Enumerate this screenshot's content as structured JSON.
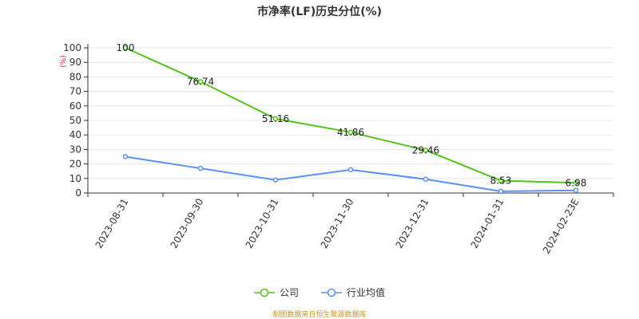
{
  "chart_data": {
    "type": "line",
    "title": "市净率(LF)历史分位(%)",
    "ylabel": "(%)",
    "xlabel": "",
    "ylim": [
      0,
      100
    ],
    "yticks": [
      0,
      10,
      20,
      30,
      40,
      50,
      60,
      70,
      80,
      90,
      100
    ],
    "categories": [
      "2023-08-31",
      "2023-09-30",
      "2023-10-31",
      "2023-11-30",
      "2023-12-31",
      "2024-01-31",
      "2024-02-23E"
    ],
    "grid": true,
    "legend_position": "bottom",
    "series": [
      {
        "name": "公司",
        "color": "#52c41a",
        "values": [
          100,
          76.74,
          51.16,
          41.86,
          29.46,
          8.53,
          6.98
        ],
        "labels": [
          "100",
          "76.74",
          "51.16",
          "41.86",
          "29.46",
          "8.53",
          "6.98"
        ]
      },
      {
        "name": "行业均值",
        "color": "#5b8ff9",
        "values": [
          25,
          17,
          9,
          16,
          9.5,
          1.2,
          1.8
        ]
      }
    ]
  },
  "source": "制图数据来自恒生聚源数据库"
}
